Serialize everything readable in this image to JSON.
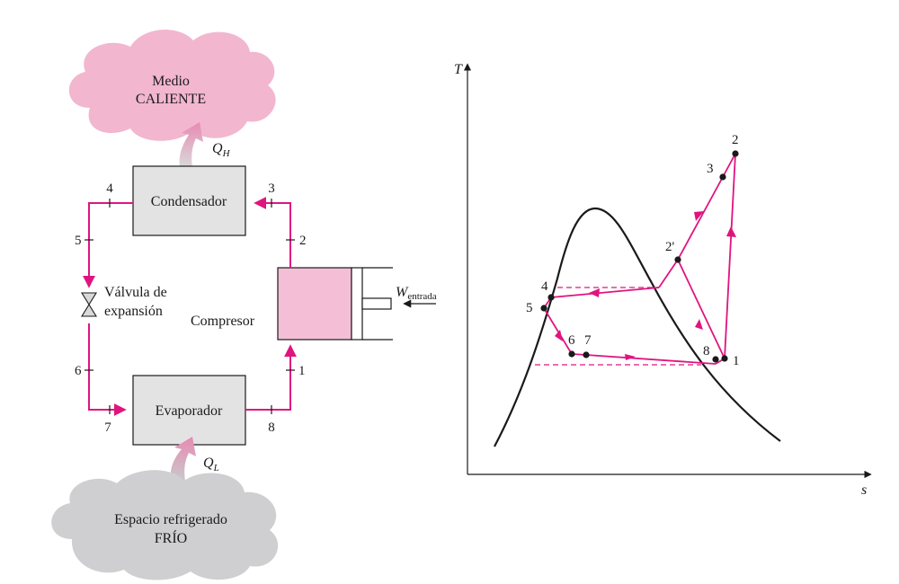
{
  "colors": {
    "accent": "#e0147f",
    "hot_cloud": "#f2b6cf",
    "cold_cloud": "#cfcfd1",
    "box_fill": "#e3e3e4",
    "compressor_fill": "#f4bfd6",
    "line": "#1a1a1a"
  },
  "schematic": {
    "hot_medium": {
      "line1": "Medio",
      "line2": "CALIENTE"
    },
    "cold_space": {
      "line1": "Espacio refrigerado",
      "line2": "FRÍO"
    },
    "condenser": "Condensador",
    "evaporator": "Evaporador",
    "compressor": "Compresor",
    "valve": {
      "line1": "Válvula de",
      "line2": "expansión"
    },
    "q_h": {
      "main": "Q",
      "sub": "H"
    },
    "q_l": {
      "main": "Q",
      "sub": "L"
    },
    "w_in": {
      "main": "W",
      "sub": "entrada"
    },
    "state_labels": [
      "1",
      "2",
      "3",
      "4",
      "5",
      "6",
      "7",
      "8"
    ]
  },
  "ts_diagram": {
    "y_axis": "T",
    "x_axis": "s",
    "point_labels": [
      "1",
      "2",
      "2'",
      "3",
      "4",
      "5",
      "6",
      "7",
      "8"
    ]
  }
}
